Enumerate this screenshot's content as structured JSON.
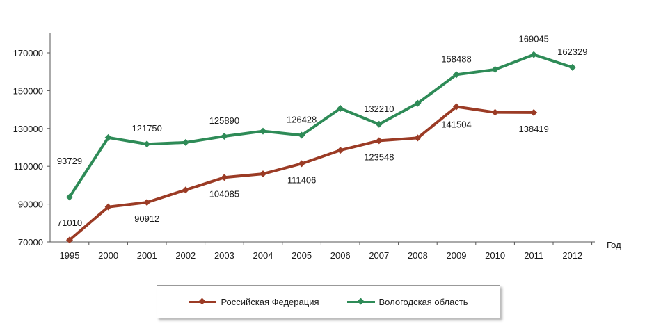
{
  "chart_data": {
    "type": "line",
    "categories": [
      "1995",
      "2000",
      "2001",
      "2002",
      "2003",
      "2004",
      "2005",
      "2006",
      "2007",
      "2008",
      "2009",
      "2010",
      "2011",
      "2012"
    ],
    "xlabel": "Год",
    "ylabel": "",
    "ylim": [
      70000,
      180000
    ],
    "yticks": [
      "70000",
      "90000",
      "110000",
      "130000",
      "150000",
      "170000"
    ],
    "grid": false,
    "legend_position": "bottom",
    "series": [
      {
        "name": "Российская Федерация",
        "color": "#9b3b25",
        "values": [
          71010,
          88500,
          90912,
          97500,
          104085,
          106000,
          111406,
          118500,
          123548,
          125000,
          141504,
          138500,
          138419,
          null
        ],
        "labels": [
          "71010",
          null,
          "90912",
          null,
          "104085",
          null,
          "111406",
          null,
          "123548",
          null,
          "141504",
          null,
          "138419",
          null
        ]
      },
      {
        "name": "Вологодская область",
        "color": "#2e8b57",
        "values": [
          93729,
          125200,
          121750,
          122600,
          125890,
          128600,
          126428,
          140600,
          132210,
          143300,
          158488,
          161200,
          169045,
          162329
        ],
        "labels": [
          "93729",
          null,
          "121750",
          null,
          "125890",
          null,
          "126428",
          null,
          "132210",
          null,
          "158488",
          null,
          "169045",
          "162329"
        ]
      }
    ]
  }
}
